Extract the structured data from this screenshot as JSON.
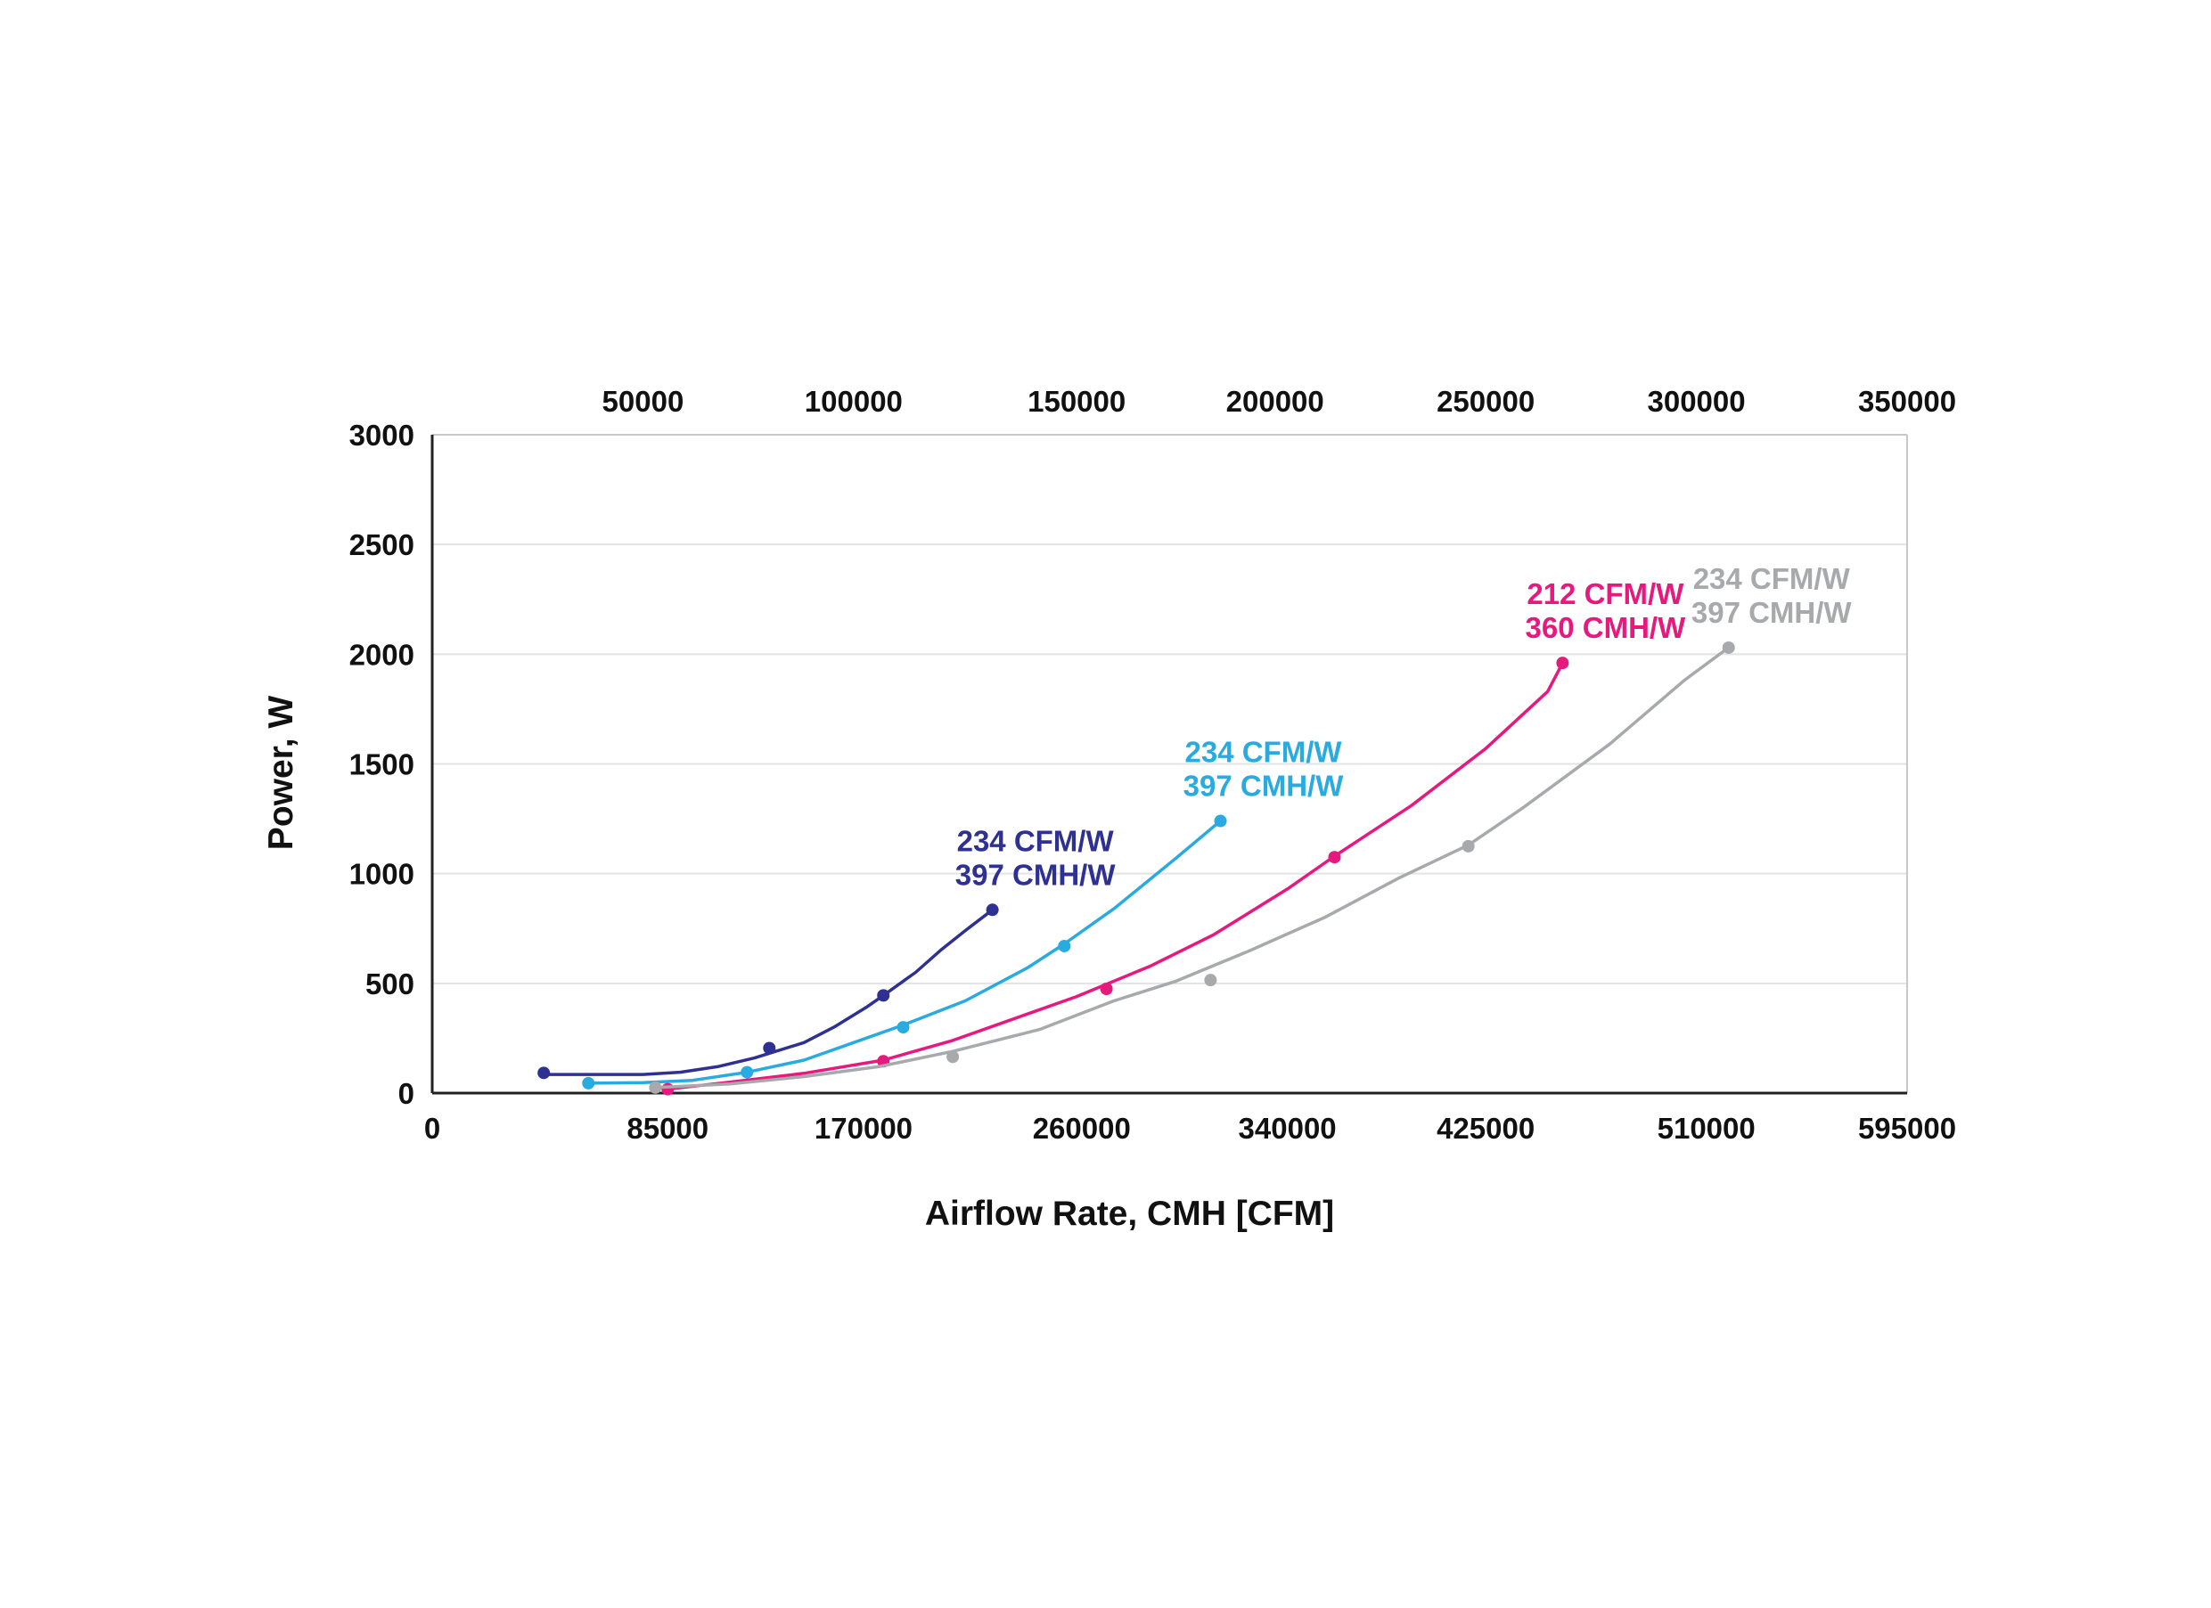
{
  "chart_data": {
    "type": "line",
    "title": "",
    "xlabel": "Airflow Rate, CMH [CFM]",
    "ylabel": "Power, W",
    "xlim": [
      0,
      595000
    ],
    "ylim": [
      0,
      3000
    ],
    "grid": true,
    "legend": "none",
    "yticks": [
      "0",
      "500",
      "1000",
      "1500",
      "2000",
      "2500",
      "3000"
    ],
    "bottom_ticks": [
      {
        "label": "0",
        "value": 0
      },
      {
        "label": "85000",
        "value": 95000
      },
      {
        "label": "170000",
        "value": 174000
      },
      {
        "label": "260000",
        "value": 262000
      },
      {
        "label": "340000",
        "value": 345000
      },
      {
        "label": "425000",
        "value": 425000
      },
      {
        "label": "510000",
        "value": 514000
      },
      {
        "label": "595000",
        "value": 595000
      }
    ],
    "top_ticks": [
      {
        "label": "50000",
        "value": 85000
      },
      {
        "label": "100000",
        "value": 170000
      },
      {
        "label": "150000",
        "value": 260000
      },
      {
        "label": "200000",
        "value": 340000
      },
      {
        "label": "250000",
        "value": 425000
      },
      {
        "label": "300000",
        "value": 510000
      },
      {
        "label": "350000",
        "value": 595000
      }
    ],
    "series": [
      {
        "color": "#2E3192",
        "line": [
          [
            45000,
            85
          ],
          [
            85000,
            85
          ],
          [
            100000,
            95
          ],
          [
            115000,
            120
          ],
          [
            130000,
            160
          ],
          [
            150000,
            230
          ],
          [
            162000,
            300
          ],
          [
            175000,
            390
          ],
          [
            182000,
            445
          ],
          [
            195000,
            550
          ],
          [
            205000,
            650
          ],
          [
            215000,
            740
          ],
          [
            226000,
            835
          ]
        ],
        "markers": [
          [
            45000,
            92
          ],
          [
            136000,
            205
          ],
          [
            182000,
            445
          ],
          [
            226000,
            835
          ]
        ],
        "label_lines": [
          "234 CFM/W",
          "397 CMH/W"
        ]
      },
      {
        "color": "#29ABE2",
        "line": [
          [
            63000,
            45
          ],
          [
            85000,
            48
          ],
          [
            105000,
            58
          ],
          [
            127000,
            95
          ],
          [
            150000,
            150
          ],
          [
            170000,
            230
          ],
          [
            190000,
            310
          ],
          [
            215000,
            420
          ],
          [
            240000,
            570
          ],
          [
            255000,
            680
          ],
          [
            275000,
            840
          ],
          [
            300000,
            1070
          ],
          [
            318000,
            1240
          ]
        ],
        "markers": [
          [
            63000,
            45
          ],
          [
            127000,
            95
          ],
          [
            190000,
            300
          ],
          [
            255000,
            670
          ],
          [
            318000,
            1240
          ]
        ],
        "label_lines": [
          "234 CFM/W",
          "397 CMH/W"
        ]
      },
      {
        "color": "#E6197E",
        "line": [
          [
            95000,
            18
          ],
          [
            120000,
            50
          ],
          [
            150000,
            90
          ],
          [
            182000,
            150
          ],
          [
            210000,
            240
          ],
          [
            240000,
            360
          ],
          [
            260000,
            440
          ],
          [
            290000,
            580
          ],
          [
            315000,
            720
          ],
          [
            345000,
            930
          ],
          [
            364000,
            1080
          ],
          [
            395000,
            1310
          ],
          [
            425000,
            1570
          ],
          [
            450000,
            1830
          ],
          [
            456000,
            1960
          ]
        ],
        "markers": [
          [
            95000,
            18
          ],
          [
            182000,
            145
          ],
          [
            272000,
            475
          ],
          [
            364000,
            1075
          ],
          [
            456000,
            1960
          ]
        ],
        "label_lines": [
          "212 CFM/W",
          "360 CMH/W"
        ]
      },
      {
        "color": "#A7A9AC",
        "line": [
          [
            90000,
            25
          ],
          [
            120000,
            42
          ],
          [
            150000,
            75
          ],
          [
            180000,
            120
          ],
          [
            210000,
            190
          ],
          [
            245000,
            290
          ],
          [
            275000,
            420
          ],
          [
            300000,
            510
          ],
          [
            330000,
            650
          ],
          [
            360000,
            800
          ],
          [
            390000,
            980
          ],
          [
            418000,
            1130
          ],
          [
            440000,
            1300
          ],
          [
            475000,
            1590
          ],
          [
            505000,
            1880
          ],
          [
            523000,
            2030
          ]
        ],
        "markers": [
          [
            90000,
            25
          ],
          [
            210000,
            165
          ],
          [
            314000,
            515
          ],
          [
            418000,
            1125
          ],
          [
            523000,
            2030
          ]
        ],
        "label_lines": [
          "234 CFM/W",
          "397 CMH/W"
        ]
      }
    ]
  }
}
